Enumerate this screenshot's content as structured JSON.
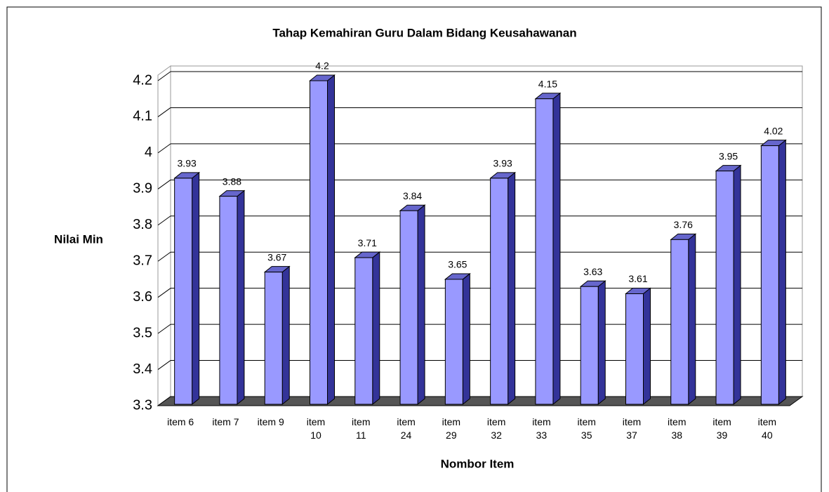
{
  "chart_data": {
    "type": "bar3d",
    "title": "Tahap Kemahiran Guru Dalam Bidang Keusahawanan",
    "x_label": "Nombor Item",
    "y_label": "Nilai Min",
    "categories": [
      "item 6",
      "item 7",
      "item 9",
      "item 10",
      "item 11",
      "item 24",
      "item 29",
      "item 32",
      "item 33",
      "item 35",
      "item 37",
      "item 38",
      "item 39",
      "item 40"
    ],
    "values": [
      3.93,
      3.88,
      3.67,
      4.2,
      3.71,
      3.84,
      3.65,
      3.93,
      4.15,
      3.63,
      3.61,
      3.76,
      3.95,
      4.02
    ],
    "color": "#9999ff",
    "ylim": [
      3.3,
      4.2
    ],
    "yticks": [
      3.3,
      3.4,
      3.5,
      3.6,
      3.7,
      3.8,
      3.9,
      4,
      4.1,
      4.2
    ],
    "grid": true
  }
}
